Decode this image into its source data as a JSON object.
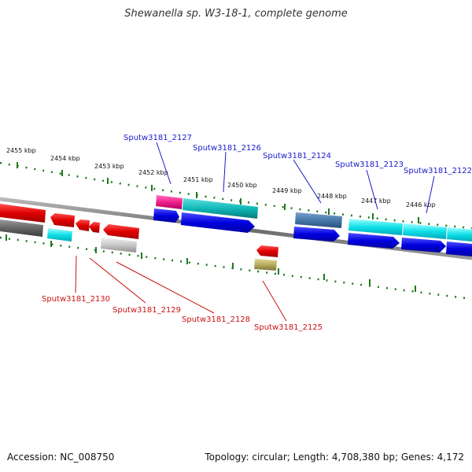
{
  "title": "Shewanella sp. W3-18-1, complete genome",
  "footer": {
    "accession": "Accession: NC_008750",
    "topology": "Topology: circular; Length: 4,708,380 bp; Genes: 4,172"
  },
  "ticks": [
    "2455 kbp",
    "2454 kbp",
    "2453 kbp",
    "2452 kbp",
    "2451 kbp",
    "2450 kbp",
    "2449 kbp",
    "2448 kbp",
    "2447 kbp",
    "2446 kbp"
  ],
  "genes_top": [
    "Sputw3181_2127",
    "Sputw3181_2126",
    "Sputw3181_2124",
    "Sputw3181_2123",
    "Sputw3181_2122"
  ],
  "genes_bottom": [
    "Sputw3181_2130",
    "Sputw3181_2129",
    "Sputw3181_2128",
    "Sputw3181_2125"
  ],
  "colors": {
    "forward_label": "#1a1acc",
    "reverse_label": "#cc1111",
    "tick_green": "#1e7a1e",
    "backbone": "#7a7a7a"
  }
}
